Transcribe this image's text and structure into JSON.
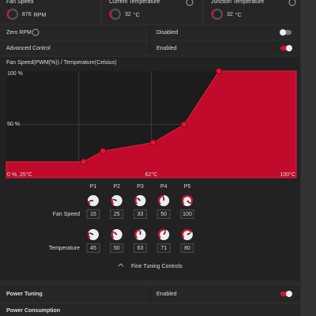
{
  "stats": [
    {
      "label": "Fan Speed",
      "value": "876",
      "unit": "RPM"
    },
    {
      "label": "Current Temperature",
      "value": "32",
      "unit": "°C"
    },
    {
      "label": "Junction Temperature",
      "value": "32",
      "unit": "°C"
    }
  ],
  "settings": [
    {
      "label": "Zero RPM",
      "state": "Disabled",
      "toggle": false
    },
    {
      "label": "Advanced Control",
      "state": "Enabled",
      "toggle": true
    }
  ],
  "curve": {
    "title": "Fan Speed(PWM(%)) / Temperature(Celsius)",
    "y_labels": [
      "100 %",
      "50 %"
    ],
    "origin_label": "0 %, 25°C",
    "x_labels": [
      "62°C",
      "100°C"
    ],
    "xlim": [
      25,
      100
    ],
    "ylim": [
      0,
      100
    ]
  },
  "points": {
    "names": [
      "P1",
      "P2",
      "P3",
      "P4",
      "P5"
    ],
    "fan_speed_label": "Fan Speed",
    "fan_speed": [
      15,
      25,
      33,
      50,
      100
    ],
    "temperature_label": "Temperature",
    "temperature": [
      45,
      50,
      63,
      71,
      80
    ]
  },
  "fine_tuning": "Fine Tuning Controls",
  "power": {
    "label": "Power Tuning",
    "state": "Enabled",
    "toggle": true
  },
  "power_consumption": "Power Consumption"
}
